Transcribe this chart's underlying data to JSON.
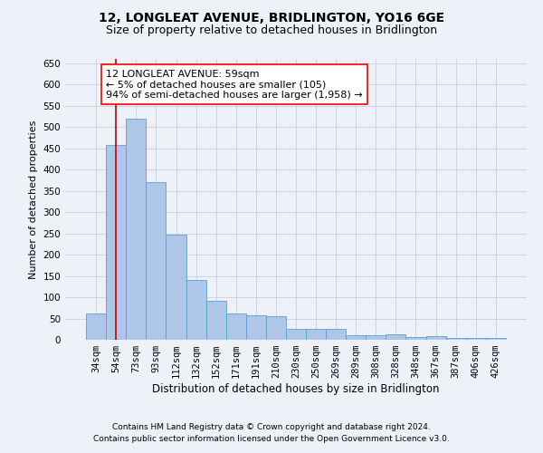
{
  "title": "12, LONGLEAT AVENUE, BRIDLINGTON, YO16 6GE",
  "subtitle": "Size of property relative to detached houses in Bridlington",
  "xlabel": "Distribution of detached houses by size in Bridlington",
  "ylabel": "Number of detached properties",
  "categories": [
    "34sqm",
    "54sqm",
    "73sqm",
    "93sqm",
    "112sqm",
    "132sqm",
    "152sqm",
    "171sqm",
    "191sqm",
    "210sqm",
    "230sqm",
    "250sqm",
    "269sqm",
    "289sqm",
    "308sqm",
    "328sqm",
    "348sqm",
    "367sqm",
    "387sqm",
    "406sqm",
    "426sqm"
  ],
  "values": [
    62,
    458,
    520,
    370,
    248,
    140,
    92,
    62,
    58,
    55,
    26,
    26,
    26,
    11,
    11,
    13,
    6,
    9,
    4,
    5,
    4
  ],
  "bar_color": "#aec6e8",
  "bar_edge_color": "#5a9fd4",
  "vline_x": 1.0,
  "vline_color": "#cc0000",
  "ylim": [
    0,
    660
  ],
  "yticks": [
    0,
    50,
    100,
    150,
    200,
    250,
    300,
    350,
    400,
    450,
    500,
    550,
    600,
    650
  ],
  "annotation_box_text": "12 LONGLEAT AVENUE: 59sqm\n← 5% of detached houses are smaller (105)\n94% of semi-detached houses are larger (1,958) →",
  "footer_line1": "Contains HM Land Registry data © Crown copyright and database right 2024.",
  "footer_line2": "Contains public sector information licensed under the Open Government Licence v3.0.",
  "bg_color": "#eef2f8",
  "plot_bg_color": "#eef2f8",
  "grid_color": "#c8d0de",
  "title_fontsize": 10,
  "subtitle_fontsize": 9,
  "xlabel_fontsize": 8.5,
  "ylabel_fontsize": 8,
  "tick_fontsize": 7.5,
  "footer_fontsize": 6.5,
  "annotation_fontsize": 8
}
